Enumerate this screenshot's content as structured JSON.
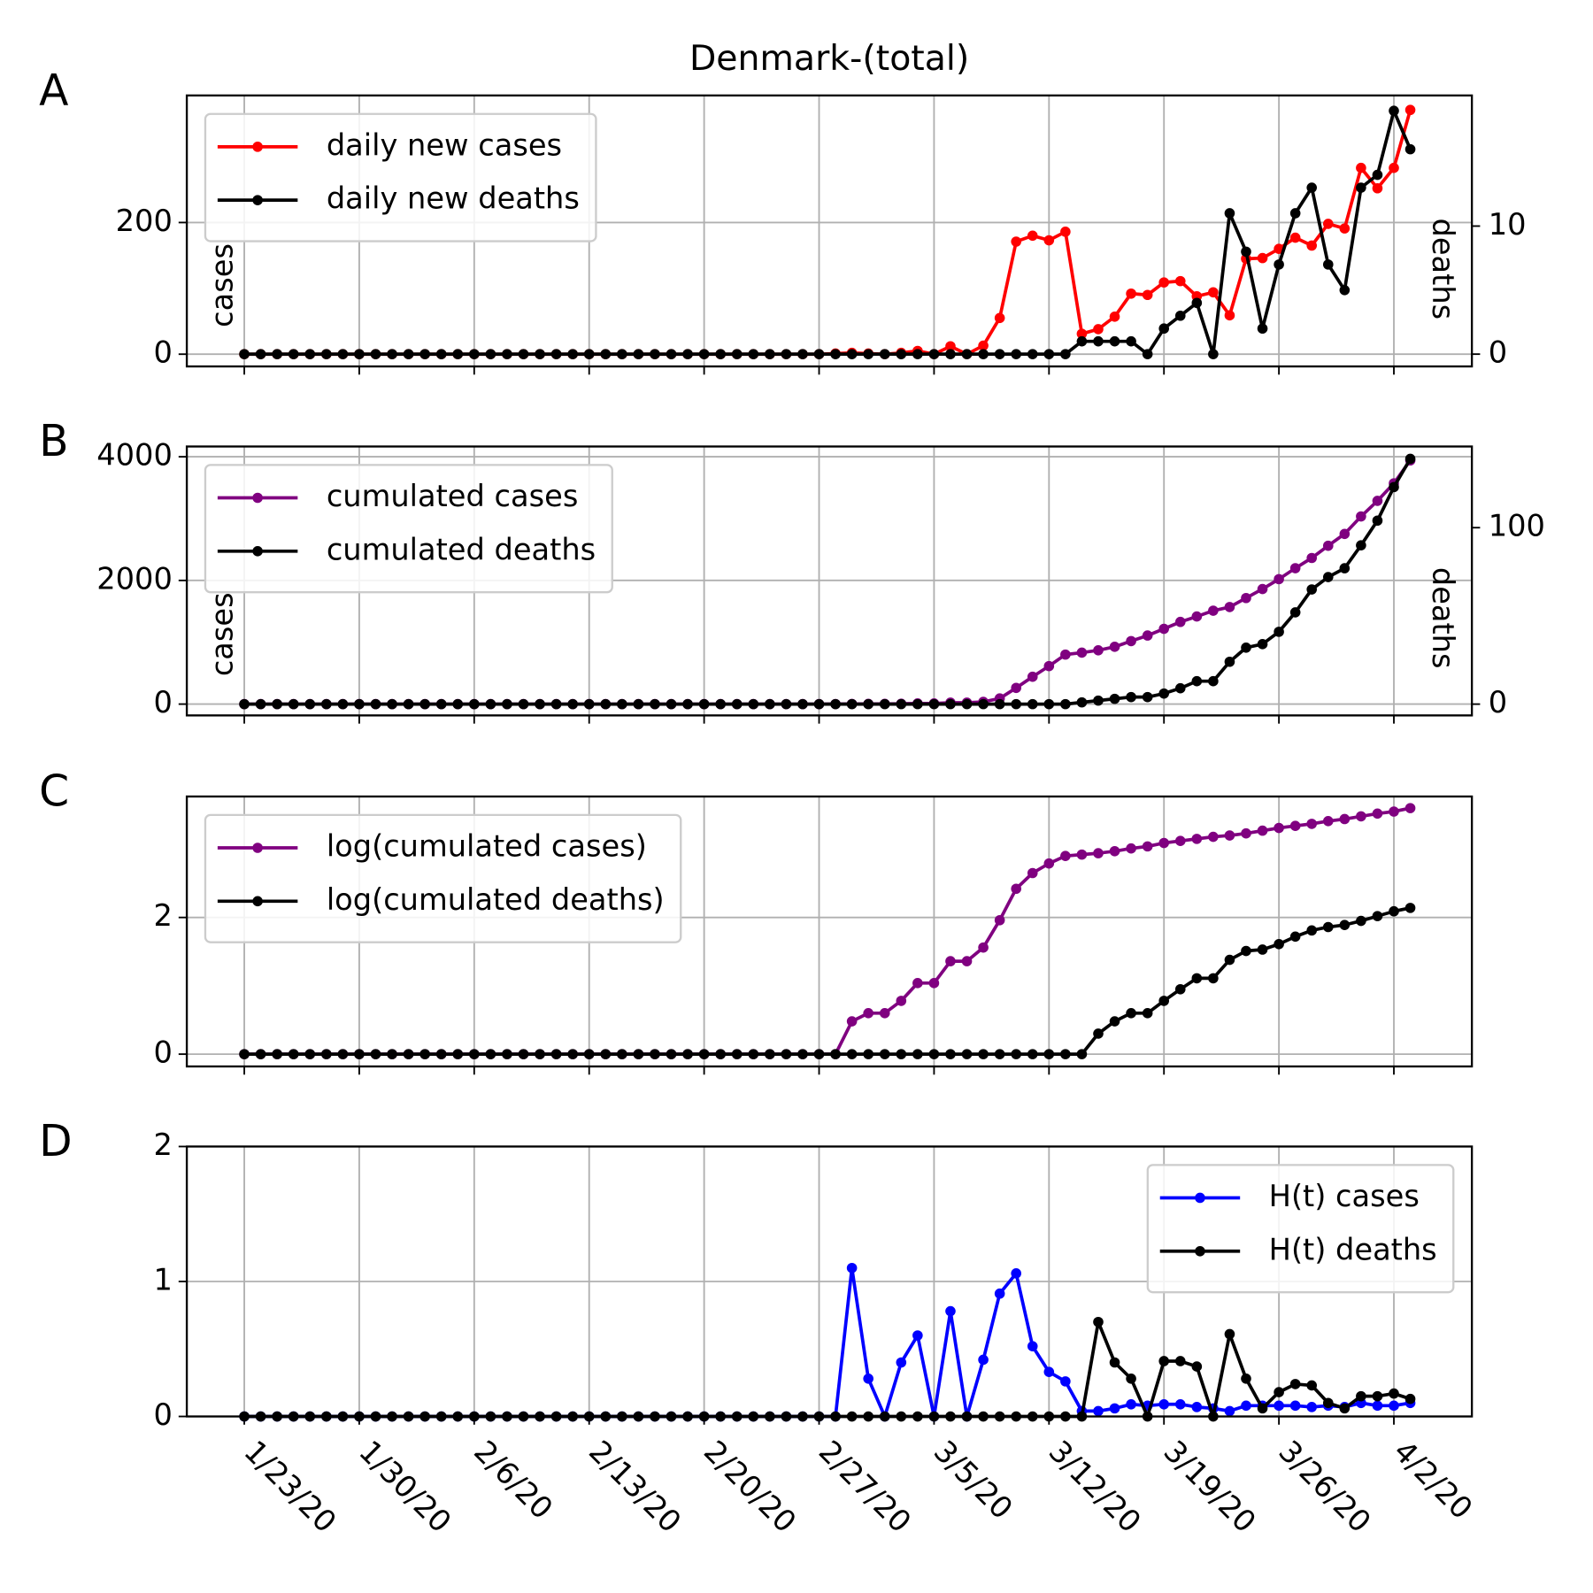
{
  "chart_data": [
    {
      "type": "line",
      "label": "A",
      "title": "Denmark-(total)",
      "ylabel": "cases",
      "y2label": "deaths",
      "ylim": [
        -18.6,
        393
      ],
      "yticks": [
        0,
        200
      ],
      "y2lim": [
        -0.96,
        20.2
      ],
      "y2ticks": [
        0,
        10
      ],
      "grid": true,
      "legend": "upper left",
      "series": [
        {
          "name": "daily new cases",
          "color": "#ff0000",
          "values": [
            0,
            0,
            0,
            0,
            0,
            0,
            0,
            0,
            0,
            0,
            0,
            0,
            0,
            0,
            0,
            0,
            0,
            0,
            0,
            0,
            0,
            0,
            0,
            0,
            0,
            0,
            0,
            0,
            0,
            0,
            0,
            0,
            0,
            0,
            0,
            0,
            1,
            2,
            1,
            0,
            2,
            5,
            0,
            12,
            0,
            13,
            55,
            171,
            180,
            173,
            186,
            31,
            38,
            57,
            92,
            90,
            109,
            111,
            88,
            94,
            59,
            145,
            146,
            160,
            177,
            165,
            198,
            191,
            283,
            252,
            283,
            371
          ]
        },
        {
          "name": "daily new deaths",
          "color": "#000000",
          "axis": "y2",
          "values": [
            0,
            0,
            0,
            0,
            0,
            0,
            0,
            0,
            0,
            0,
            0,
            0,
            0,
            0,
            0,
            0,
            0,
            0,
            0,
            0,
            0,
            0,
            0,
            0,
            0,
            0,
            0,
            0,
            0,
            0,
            0,
            0,
            0,
            0,
            0,
            0,
            0,
            0,
            0,
            0,
            0,
            0,
            0,
            0,
            0,
            0,
            0,
            0,
            0,
            0,
            0,
            1,
            1,
            1,
            1,
            0,
            2,
            3,
            4,
            0,
            11,
            8,
            2,
            7,
            11,
            13,
            7,
            5,
            13,
            14,
            19,
            16
          ]
        }
      ]
    },
    {
      "type": "line",
      "label": "B",
      "ylabel": "cases",
      "y2label": "deaths",
      "ylim": [
        -183,
        4166
      ],
      "yticks": [
        0,
        2000,
        4000
      ],
      "y2lim": [
        -6.4,
        146
      ],
      "y2ticks": [
        0,
        100
      ],
      "grid": true,
      "legend": "upper left",
      "series": [
        {
          "name": "cumulated cases",
          "color": "#800080",
          "values": [
            0,
            0,
            0,
            0,
            0,
            0,
            0,
            0,
            0,
            0,
            0,
            0,
            0,
            0,
            0,
            0,
            0,
            0,
            0,
            0,
            0,
            0,
            0,
            0,
            0,
            0,
            0,
            0,
            0,
            0,
            0,
            0,
            0,
            0,
            0,
            0,
            1,
            3,
            4,
            4,
            6,
            11,
            11,
            23,
            23,
            36,
            91,
            262,
            442,
            615,
            801,
            832,
            870,
            927,
            1019,
            1109,
            1218,
            1329,
            1417,
            1511,
            1570,
            1715,
            1861,
            2021,
            2198,
            2363,
            2561,
            2752,
            3035,
            3287,
            3570,
            3941
          ]
        },
        {
          "name": "cumulated deaths",
          "color": "#000000",
          "axis": "y2",
          "values": [
            0,
            0,
            0,
            0,
            0,
            0,
            0,
            0,
            0,
            0,
            0,
            0,
            0,
            0,
            0,
            0,
            0,
            0,
            0,
            0,
            0,
            0,
            0,
            0,
            0,
            0,
            0,
            0,
            0,
            0,
            0,
            0,
            0,
            0,
            0,
            0,
            0,
            0,
            0,
            0,
            0,
            0,
            0,
            0,
            0,
            0,
            0,
            0,
            0,
            0,
            0,
            1,
            2,
            3,
            4,
            4,
            6,
            9,
            13,
            13,
            24,
            32,
            34,
            41,
            52,
            65,
            72,
            77,
            90,
            104,
            123,
            139
          ]
        }
      ]
    },
    {
      "type": "line",
      "label": "C",
      "ylim": [
        -0.18,
        3.77
      ],
      "yticks": [
        0,
        2
      ],
      "grid": true,
      "legend": "upper left",
      "series": [
        {
          "name": "log(cumulated cases)",
          "color": "#800080",
          "values": [
            0,
            0,
            0,
            0,
            0,
            0,
            0,
            0,
            0,
            0,
            0,
            0,
            0,
            0,
            0,
            0,
            0,
            0,
            0,
            0,
            0,
            0,
            0,
            0,
            0,
            0,
            0,
            0,
            0,
            0,
            0,
            0,
            0,
            0,
            0,
            0,
            0,
            0.48,
            0.6,
            0.6,
            0.78,
            1.04,
            1.04,
            1.36,
            1.36,
            1.56,
            1.96,
            2.42,
            2.65,
            2.79,
            2.9,
            2.92,
            2.94,
            2.97,
            3.01,
            3.04,
            3.09,
            3.12,
            3.15,
            3.18,
            3.2,
            3.23,
            3.27,
            3.31,
            3.34,
            3.37,
            3.41,
            3.44,
            3.48,
            3.52,
            3.55,
            3.6
          ]
        },
        {
          "name": "log(cumulated deaths)",
          "color": "#000000",
          "values": [
            0,
            0,
            0,
            0,
            0,
            0,
            0,
            0,
            0,
            0,
            0,
            0,
            0,
            0,
            0,
            0,
            0,
            0,
            0,
            0,
            0,
            0,
            0,
            0,
            0,
            0,
            0,
            0,
            0,
            0,
            0,
            0,
            0,
            0,
            0,
            0,
            0,
            0,
            0,
            0,
            0,
            0,
            0,
            0,
            0,
            0,
            0,
            0,
            0,
            0,
            0,
            0,
            0.3,
            0.48,
            0.6,
            0.6,
            0.78,
            0.95,
            1.11,
            1.11,
            1.38,
            1.51,
            1.53,
            1.61,
            1.72,
            1.81,
            1.86,
            1.89,
            1.95,
            2.02,
            2.09,
            2.14
          ]
        }
      ]
    },
    {
      "type": "line",
      "label": "D",
      "categories": [
        "1/23/20",
        null,
        null,
        null,
        null,
        null,
        null,
        "1/30/20",
        null,
        null,
        null,
        null,
        null,
        null,
        "2/6/20",
        null,
        null,
        null,
        null,
        null,
        null,
        "2/13/20",
        null,
        null,
        null,
        null,
        null,
        null,
        "2/20/20",
        null,
        null,
        null,
        null,
        null,
        null,
        "2/27/20",
        null,
        null,
        null,
        null,
        null,
        null,
        "3/5/20",
        null,
        null,
        null,
        null,
        null,
        null,
        "3/12/20",
        null,
        null,
        null,
        null,
        null,
        null,
        "3/19/20",
        null,
        null,
        null,
        null,
        null,
        null,
        "3/26/20",
        null,
        null,
        null,
        null,
        null,
        null,
        "4/2/20",
        null
      ],
      "ylim": [
        0,
        2
      ],
      "yticks": [
        0,
        1,
        2
      ],
      "grid": true,
      "legend": "upper right",
      "series": [
        {
          "name": "H(t) cases",
          "color": "#0000ff",
          "values": [
            0,
            0,
            0,
            0,
            0,
            0,
            0,
            0,
            0,
            0,
            0,
            0,
            0,
            0,
            0,
            0,
            0,
            0,
            0,
            0,
            0,
            0,
            0,
            0,
            0,
            0,
            0,
            0,
            0,
            0,
            0,
            0,
            0,
            0,
            0,
            0,
            0,
            1.1,
            0.28,
            0,
            0.4,
            0.6,
            0,
            0.78,
            0,
            0.42,
            0.91,
            1.06,
            0.52,
            0.33,
            0.26,
            0.04,
            0.04,
            0.06,
            0.09,
            0.08,
            0.09,
            0.09,
            0.07,
            0.06,
            0.04,
            0.08,
            0.08,
            0.08,
            0.08,
            0.07,
            0.08,
            0.07,
            0.1,
            0.08,
            0.08,
            0.1
          ]
        },
        {
          "name": "H(t) deaths",
          "color": "#000000",
          "values": [
            0,
            0,
            0,
            0,
            0,
            0,
            0,
            0,
            0,
            0,
            0,
            0,
            0,
            0,
            0,
            0,
            0,
            0,
            0,
            0,
            0,
            0,
            0,
            0,
            0,
            0,
            0,
            0,
            0,
            0,
            0,
            0,
            0,
            0,
            0,
            0,
            0,
            0,
            0,
            0,
            0,
            0,
            0,
            0,
            0,
            0,
            0,
            0,
            0,
            0,
            0,
            0,
            0.7,
            0.4,
            0.28,
            0,
            0.41,
            0.41,
            0.37,
            0,
            0.61,
            0.28,
            0.06,
            0.18,
            0.24,
            0.23,
            0.1,
            0.06,
            0.15,
            0.15,
            0.17,
            0.13
          ]
        }
      ]
    }
  ]
}
